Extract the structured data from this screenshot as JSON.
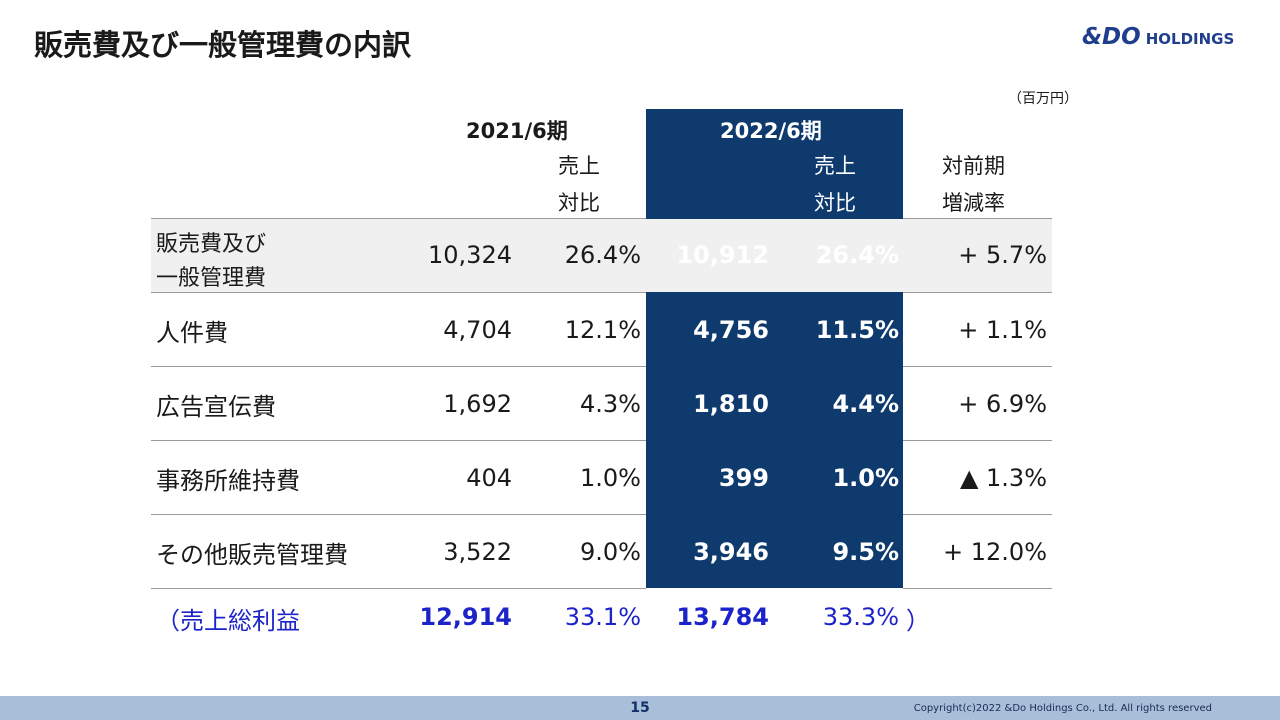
{
  "title": "販売費及び一般管理費の内訳",
  "logo": {
    "mark": "&DO",
    "sub": "HOLDINGS"
  },
  "unit": "（百万円）",
  "header": {
    "period_2021": "2021/6期",
    "period_2022": "2022/6期",
    "ratio_line1": "売上",
    "ratio_line2": "対比",
    "change_line1": "対前期",
    "change_line2": "増減率"
  },
  "rows": [
    {
      "label": "販売費及び",
      "label2": "一般管理費",
      "v2021": "10,324",
      "r2021": "26.4%",
      "v2022": "10,912",
      "r2022": "26.4%",
      "change": "+ 5.7%"
    },
    {
      "label": "人件費",
      "v2021": "4,704",
      "r2021": "12.1%",
      "v2022": "4,756",
      "r2022": "11.5%",
      "change": "+ 1.1%"
    },
    {
      "label": "広告宣伝費",
      "v2021": "1,692",
      "r2021": "4.3%",
      "v2022": "1,810",
      "r2022": "4.4%",
      "change": "+ 6.9%"
    },
    {
      "label": "事務所維持費",
      "v2021": "404",
      "r2021": "1.0%",
      "v2022": "399",
      "r2022": "1.0%",
      "change": "▲ 1.3%"
    },
    {
      "label": "その他販売管理費",
      "v2021": "3,522",
      "r2021": "9.0%",
      "v2022": "3,946",
      "r2022": "9.5%",
      "change": "+ 12.0%"
    }
  ],
  "gross_profit": {
    "label": "（売上総利益",
    "v2021": "12,914",
    "r2021": "33.1%",
    "v2022": "13,784",
    "r2022": "33.3%",
    "close": "）"
  },
  "footer": {
    "page": "15",
    "copyright": "Copyright(c)2022 &Do Holdings Co., Ltd. All rights reserved"
  },
  "colors": {
    "highlight": "#0e3a6e",
    "accent_blue": "#1c23c8",
    "footer_bar": "#a9bfd9",
    "logo": "#1f3f8c"
  }
}
